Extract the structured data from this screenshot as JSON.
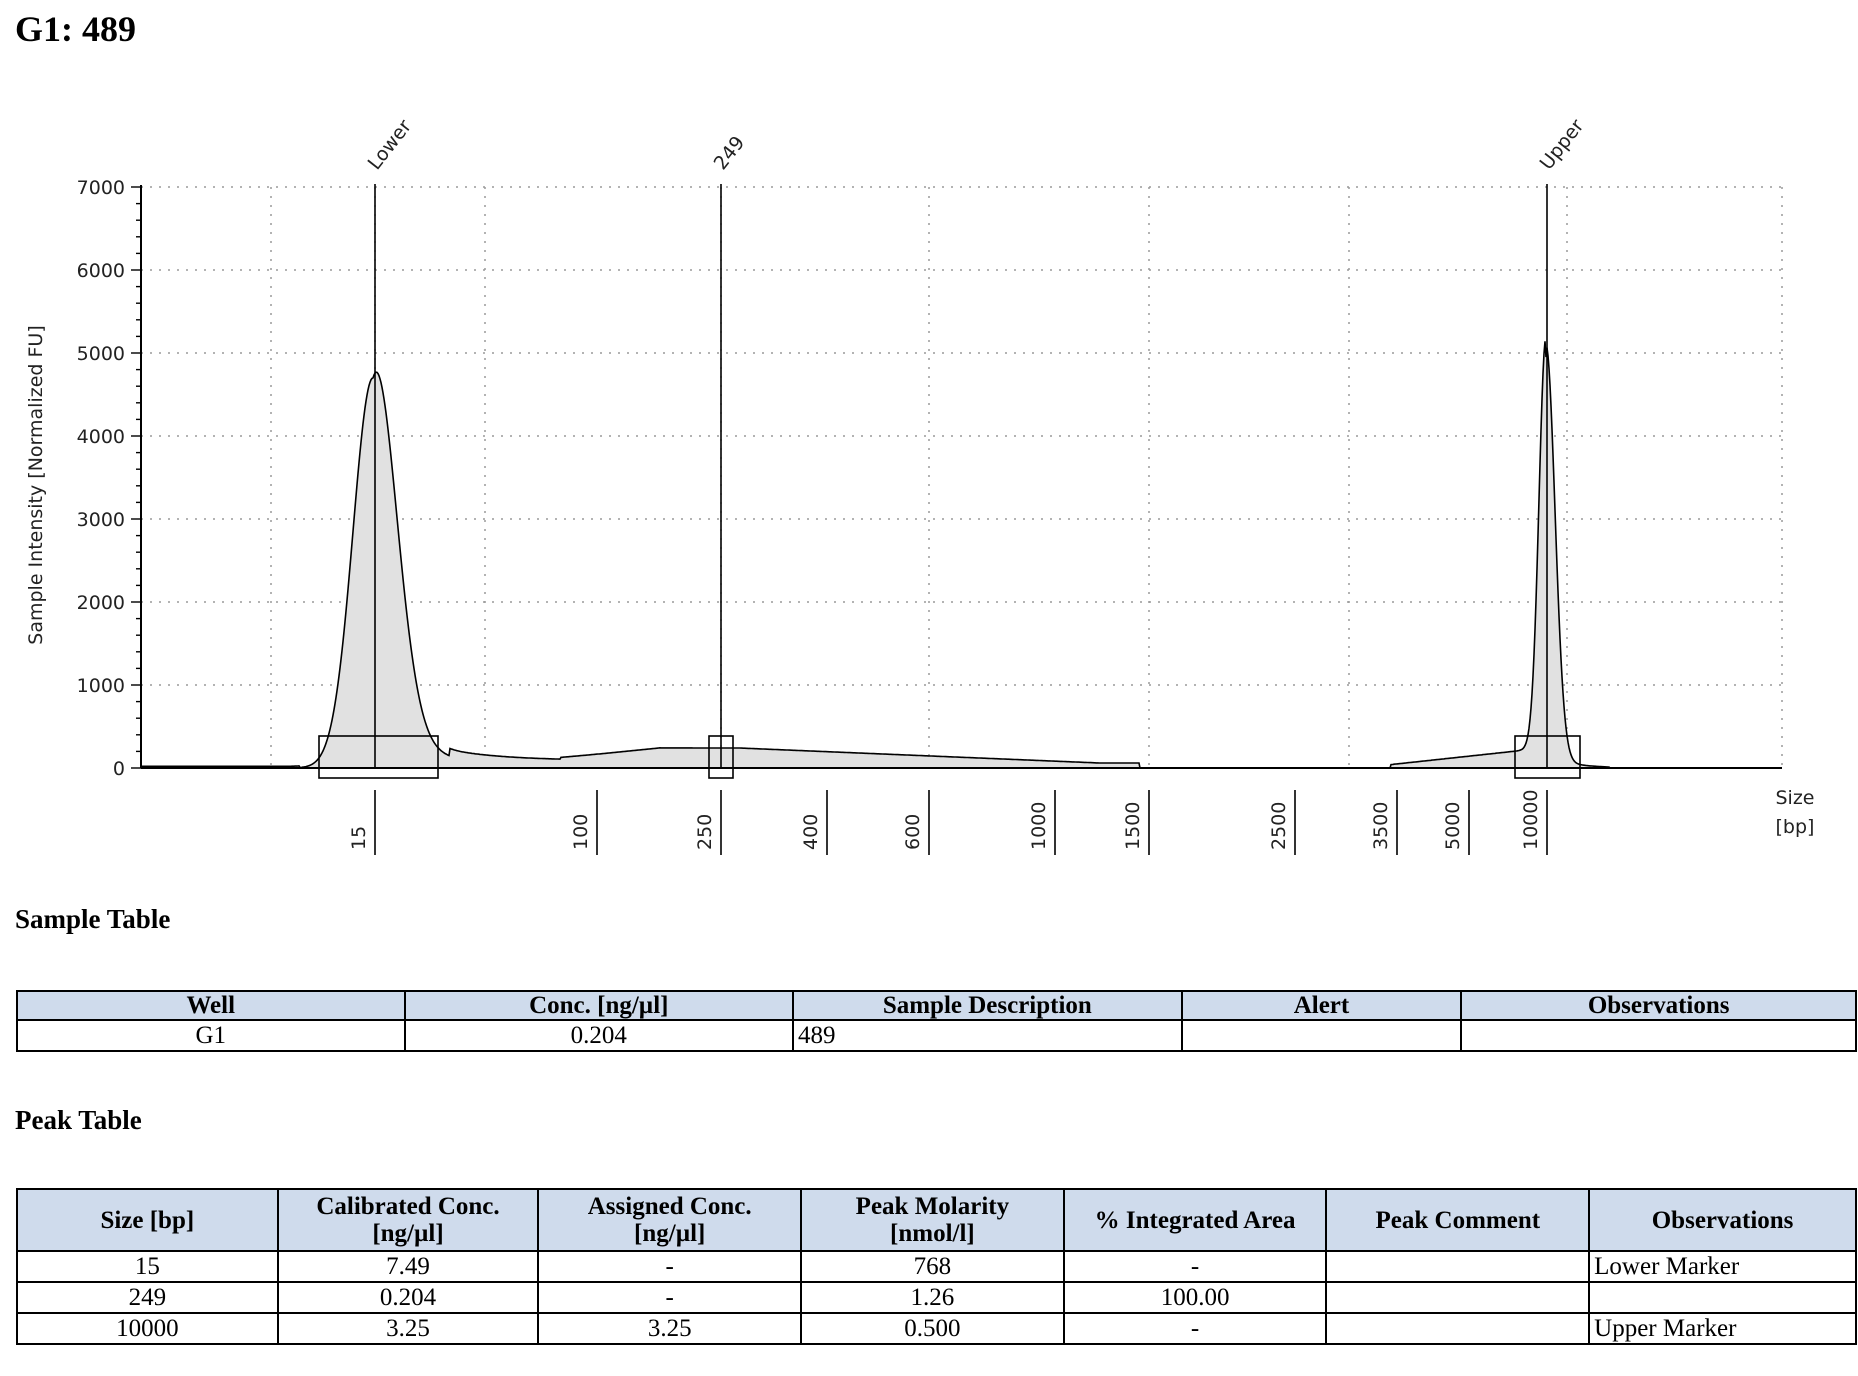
{
  "page": {
    "title": "G1: 489"
  },
  "chart_data": {
    "type": "area",
    "ylabel": "Sample Intensity [Normalized FU]",
    "xlabel": [
      "Size",
      "[bp]"
    ],
    "yticks": [
      0,
      1000,
      2000,
      3000,
      4000,
      5000,
      6000,
      7000
    ],
    "ylim": [
      0,
      7000
    ],
    "grid": true,
    "x_ladder_ticks": [
      "15",
      "100",
      "250",
      "400",
      "600",
      "1000",
      "1500",
      "2500",
      "3500",
      "5000",
      "10000"
    ],
    "peak_labels": [
      "Lower",
      "249",
      "Upper"
    ],
    "peaks": [
      {
        "label": "Lower",
        "size_bp": 15,
        "intensity": 4700
      },
      {
        "label": "249",
        "size_bp": 249,
        "intensity": 240
      },
      {
        "label": "Upper",
        "size_bp": 10000,
        "intensity": 4950
      }
    ]
  },
  "sample_table": {
    "title": "Sample Table",
    "headers": [
      "Well",
      "Conc. [ng/µl]",
      "Sample Description",
      "Alert",
      "Observations"
    ],
    "rows": [
      [
        "G1",
        "0.204",
        "489",
        "",
        ""
      ]
    ]
  },
  "peak_table": {
    "title": "Peak Table",
    "headers": [
      [
        "Size [bp]"
      ],
      [
        "Calibrated Conc.",
        "[ng/µl]"
      ],
      [
        "Assigned Conc.",
        "[ng/µl]"
      ],
      [
        "Peak Molarity",
        "[nmol/l]"
      ],
      [
        "% Integrated Area"
      ],
      [
        "Peak Comment"
      ],
      [
        "Observations"
      ]
    ],
    "rows": [
      [
        "15",
        "7.49",
        "-",
        "768",
        "-",
        "",
        "Lower Marker"
      ],
      [
        "249",
        "0.204",
        "-",
        "1.26",
        "100.00",
        "",
        ""
      ],
      [
        "10000",
        "3.25",
        "3.25",
        "0.500",
        "-",
        "",
        "Upper Marker"
      ]
    ]
  }
}
